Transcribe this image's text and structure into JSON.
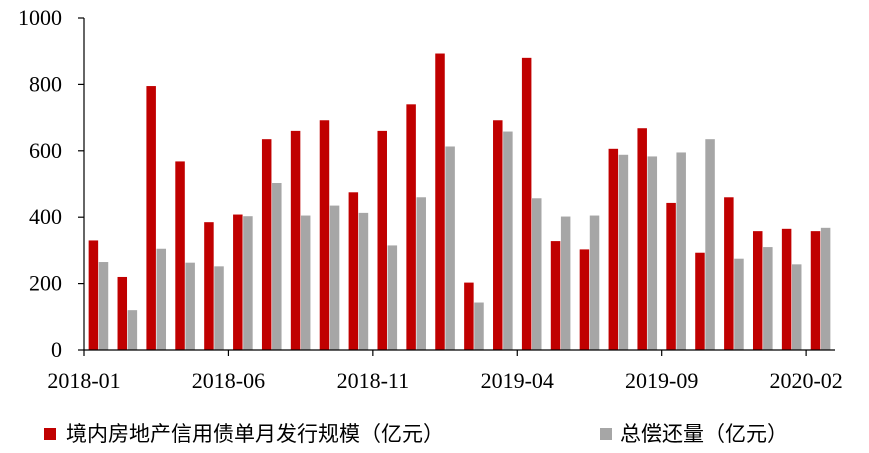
{
  "chart_data": {
    "type": "bar",
    "title": "",
    "xlabel": "",
    "ylabel": "",
    "ylim": [
      0,
      1000
    ],
    "yticks": [
      0,
      200,
      400,
      600,
      800,
      1000
    ],
    "x_tick_labels": [
      "2018-01",
      "2018-06",
      "2018-11",
      "2019-04",
      "2019-09",
      "2020-02"
    ],
    "x_tick_every": 5,
    "categories": [
      "2018-01",
      "2018-02",
      "2018-03",
      "2018-04",
      "2018-05",
      "2018-06",
      "2018-07",
      "2018-08",
      "2018-09",
      "2018-10",
      "2018-11",
      "2018-12",
      "2019-01",
      "2019-02",
      "2019-03",
      "2019-04",
      "2019-05",
      "2019-06",
      "2019-07",
      "2019-08",
      "2019-09",
      "2019-10",
      "2019-11",
      "2019-12",
      "2020-01",
      "2020-02"
    ],
    "grid": false,
    "legend_position": "bottom",
    "series": [
      {
        "name": "境内房地产信用债单月发行规模（亿元）",
        "color": "#C00000",
        "values": [
          330,
          220,
          795,
          568,
          385,
          408,
          635,
          660,
          692,
          475,
          660,
          740,
          893,
          203,
          692,
          880,
          328,
          303,
          606,
          668,
          443,
          293,
          460,
          358,
          365,
          358
        ]
      },
      {
        "name": "总偿还量（亿元）",
        "color": "#A6A6A6",
        "values": [
          265,
          120,
          305,
          263,
          252,
          403,
          503,
          405,
          435,
          413,
          315,
          460,
          613,
          143,
          658,
          457,
          402,
          405,
          588,
          583,
          595,
          635,
          275,
          310,
          258,
          368
        ]
      }
    ]
  }
}
